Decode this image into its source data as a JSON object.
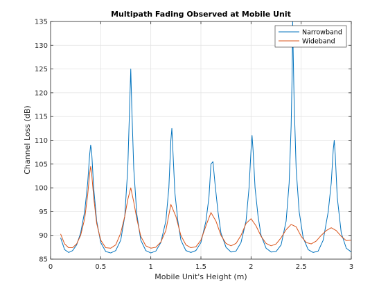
{
  "chart_data": {
    "type": "line",
    "title": "Multipath Fading Observed at Mobile Unit",
    "xlabel": "Mobile Unit's Height (m)",
    "ylabel": "Channel Loss (dB)",
    "xlim": [
      0,
      3
    ],
    "ylim": [
      85,
      135
    ],
    "xticks": [
      0,
      0.5,
      1,
      1.5,
      2,
      2.5,
      3
    ],
    "xtick_labels": [
      "0",
      "0.5",
      "1",
      "1.5",
      "2",
      "2.5",
      "3"
    ],
    "yticks": [
      85,
      90,
      95,
      100,
      105,
      110,
      115,
      120,
      125,
      130,
      135
    ],
    "ytick_labels": [
      "85",
      "90",
      "95",
      "100",
      "105",
      "110",
      "115",
      "120",
      "125",
      "130",
      "135"
    ],
    "grid": true,
    "legend_position": "top-right",
    "series": [
      {
        "name": "Narrowband",
        "color": "#0072BD",
        "x": [
          0.1,
          0.14,
          0.18,
          0.22,
          0.26,
          0.3,
          0.34,
          0.37,
          0.39,
          0.4,
          0.41,
          0.43,
          0.46,
          0.5,
          0.55,
          0.6,
          0.65,
          0.7,
          0.74,
          0.77,
          0.79,
          0.8,
          0.81,
          0.83,
          0.86,
          0.9,
          0.95,
          1.0,
          1.05,
          1.1,
          1.15,
          1.18,
          1.2,
          1.21,
          1.22,
          1.24,
          1.27,
          1.3,
          1.35,
          1.4,
          1.45,
          1.5,
          1.55,
          1.58,
          1.6,
          1.62,
          1.64,
          1.67,
          1.7,
          1.75,
          1.8,
          1.85,
          1.9,
          1.95,
          1.98,
          2.0,
          2.01,
          2.02,
          2.04,
          2.07,
          2.1,
          2.15,
          2.2,
          2.25,
          2.3,
          2.35,
          2.38,
          2.4,
          2.41,
          2.415,
          2.42,
          2.43,
          2.45,
          2.48,
          2.52,
          2.57,
          2.62,
          2.67,
          2.72,
          2.77,
          2.8,
          2.82,
          2.83,
          2.84,
          2.86,
          2.9,
          2.95,
          3.0
        ],
        "values": [
          89.5,
          87.0,
          86.4,
          86.8,
          88.0,
          90.5,
          95.0,
          101.0,
          107.0,
          109.0,
          107.5,
          100.0,
          93.0,
          88.5,
          86.6,
          86.3,
          86.8,
          89.0,
          94.0,
          104.0,
          118.0,
          125.0,
          117.0,
          104.0,
          94.5,
          89.0,
          86.8,
          86.3,
          86.7,
          88.5,
          93.0,
          100.0,
          110.0,
          112.5,
          108.0,
          99.0,
          93.0,
          89.0,
          86.8,
          86.4,
          86.8,
          88.5,
          93.0,
          98.0,
          105.0,
          105.5,
          101.0,
          95.0,
          90.5,
          87.5,
          86.5,
          86.7,
          88.5,
          93.0,
          100.0,
          108.0,
          111.0,
          108.0,
          100.0,
          94.0,
          90.0,
          87.3,
          86.5,
          86.6,
          88.0,
          93.0,
          101.0,
          113.0,
          124.0,
          135.0,
          129.0,
          118.0,
          104.0,
          95.0,
          89.5,
          87.0,
          86.4,
          86.7,
          89.0,
          95.0,
          101.0,
          108.0,
          110.0,
          107.0,
          98.0,
          90.5,
          87.3,
          86.5
        ]
      },
      {
        "name": "Wideband",
        "color": "#D95319",
        "x": [
          0.1,
          0.14,
          0.18,
          0.22,
          0.26,
          0.3,
          0.34,
          0.37,
          0.39,
          0.4,
          0.41,
          0.43,
          0.46,
          0.5,
          0.55,
          0.6,
          0.65,
          0.7,
          0.74,
          0.77,
          0.8,
          0.83,
          0.86,
          0.9,
          0.95,
          1.0,
          1.05,
          1.1,
          1.15,
          1.2,
          1.25,
          1.3,
          1.35,
          1.4,
          1.45,
          1.5,
          1.55,
          1.6,
          1.65,
          1.7,
          1.75,
          1.8,
          1.85,
          1.9,
          1.95,
          2.0,
          2.05,
          2.1,
          2.15,
          2.2,
          2.25,
          2.3,
          2.35,
          2.4,
          2.45,
          2.5,
          2.55,
          2.6,
          2.65,
          2.7,
          2.75,
          2.8,
          2.85,
          2.9,
          2.95,
          3.0
        ],
        "values": [
          90.3,
          88.2,
          87.4,
          87.4,
          88.2,
          90.0,
          93.5,
          98.5,
          103.0,
          104.5,
          103.0,
          98.0,
          92.5,
          89.0,
          87.4,
          87.3,
          88.0,
          90.5,
          94.0,
          97.5,
          100.0,
          97.0,
          93.5,
          89.8,
          87.8,
          87.3,
          87.5,
          88.6,
          91.0,
          96.5,
          94.0,
          90.0,
          88.0,
          87.4,
          87.6,
          89.0,
          92.0,
          94.8,
          93.0,
          90.0,
          88.3,
          87.8,
          88.3,
          90.0,
          92.5,
          93.5,
          92.0,
          89.8,
          88.3,
          87.8,
          88.2,
          89.5,
          91.2,
          92.3,
          91.8,
          89.8,
          88.5,
          88.2,
          88.8,
          90.0,
          91.0,
          91.6,
          91.0,
          89.8,
          88.9,
          89.0
        ]
      }
    ]
  }
}
